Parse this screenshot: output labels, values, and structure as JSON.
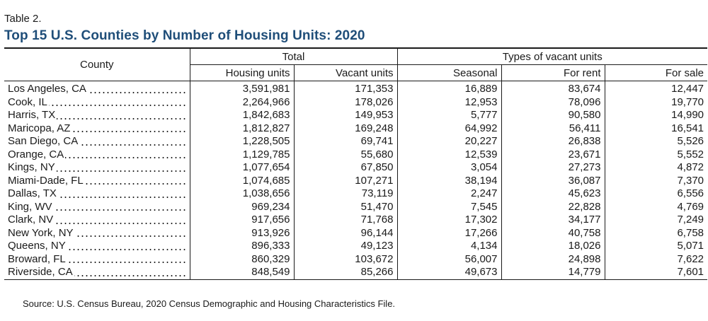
{
  "table_label": "Table 2.",
  "title": "Top 15 U.S. Counties by Number of Housing Units: 2020",
  "headers": {
    "county": "County",
    "total": "Total",
    "vacant_types": "Types of vacant units",
    "housing_units": "Housing units",
    "vacant_units": "Vacant units",
    "seasonal": "Seasonal",
    "for_rent": "For rent",
    "for_sale": "For sale"
  },
  "rows": [
    {
      "county": "Los Angeles, CA",
      "housing_units": "3,591,981",
      "vacant_units": "171,353",
      "seasonal": "16,889",
      "for_rent": "83,674",
      "for_sale": "12,447"
    },
    {
      "county": "Cook, IL",
      "housing_units": "2,264,966",
      "vacant_units": "178,026",
      "seasonal": "12,953",
      "for_rent": "78,096",
      "for_sale": "19,770"
    },
    {
      "county": "Harris, TX",
      "housing_units": "1,842,683",
      "vacant_units": "149,953",
      "seasonal": "5,777",
      "for_rent": "90,580",
      "for_sale": "14,990"
    },
    {
      "county": "Maricopa, AZ",
      "housing_units": "1,812,827",
      "vacant_units": "169,248",
      "seasonal": "64,992",
      "for_rent": "56,411",
      "for_sale": "16,541"
    },
    {
      "county": "San Diego, CA",
      "housing_units": "1,228,505",
      "vacant_units": "69,741",
      "seasonal": "20,227",
      "for_rent": "26,838",
      "for_sale": "5,526"
    },
    {
      "county": "Orange, CA",
      "housing_units": "1,129,785",
      "vacant_units": "55,680",
      "seasonal": "12,539",
      "for_rent": "23,671",
      "for_sale": "5,552"
    },
    {
      "county": "Kings, NY",
      "housing_units": "1,077,654",
      "vacant_units": "67,850",
      "seasonal": "3,054",
      "for_rent": "27,273",
      "for_sale": "4,872"
    },
    {
      "county": "Miami-Dade, FL",
      "housing_units": "1,074,685",
      "vacant_units": "107,271",
      "seasonal": "38,194",
      "for_rent": "36,087",
      "for_sale": "7,370"
    },
    {
      "county": "Dallas, TX",
      "housing_units": "1,038,656",
      "vacant_units": "73,119",
      "seasonal": "2,247",
      "for_rent": "45,623",
      "for_sale": "6,556"
    },
    {
      "county": "King, WV",
      "housing_units": "969,234",
      "vacant_units": "51,470",
      "seasonal": "7,545",
      "for_rent": "22,828",
      "for_sale": "4,769"
    },
    {
      "county": "Clark, NV",
      "housing_units": "917,656",
      "vacant_units": "71,768",
      "seasonal": "17,302",
      "for_rent": "34,177",
      "for_sale": "7,249"
    },
    {
      "county": "New York, NY",
      "housing_units": "913,926",
      "vacant_units": "96,144",
      "seasonal": "17,266",
      "for_rent": "40,758",
      "for_sale": "6,758"
    },
    {
      "county": "Queens, NY",
      "housing_units": "896,333",
      "vacant_units": "49,123",
      "seasonal": "4,134",
      "for_rent": "18,026",
      "for_sale": "5,071"
    },
    {
      "county": "Broward, FL",
      "housing_units": "860,329",
      "vacant_units": "103,672",
      "seasonal": "56,007",
      "for_rent": "24,898",
      "for_sale": "7,622"
    },
    {
      "county": "Riverside, CA",
      "housing_units": "848,549",
      "vacant_units": "85,266",
      "seasonal": "49,673",
      "for_rent": "14,779",
      "for_sale": "7,601"
    }
  ],
  "source": "Source: U.S. Census Bureau, 2020 Census Demographic and Housing Characteristics File.",
  "colors": {
    "title": "#1f4e79",
    "text": "#1a1a1a",
    "rule": "#1a1a1a"
  }
}
